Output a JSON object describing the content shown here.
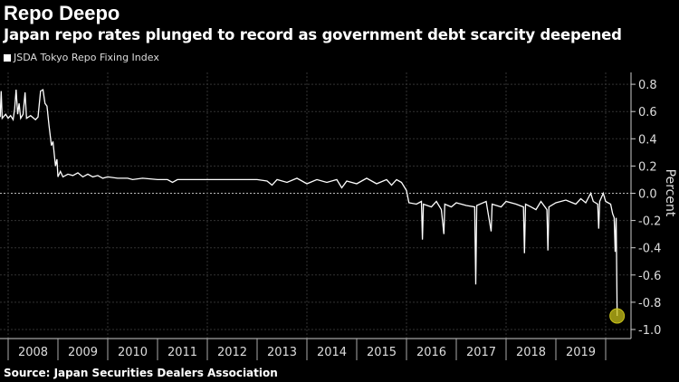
{
  "chart_data": {
    "type": "line",
    "title": "Repo Deepo",
    "subtitle": "Japan repo rates plunged to record as government debt scarcity deepened",
    "source": "Source: Japan Securities Dealers Association",
    "ylabel": "Percent",
    "ylim": [
      -1.0,
      0.8
    ],
    "yticks": [
      "0.8",
      "0.6",
      "0.4",
      "0.2",
      "0.0",
      "-0.2",
      "-0.4",
      "-0.6",
      "-0.8",
      "-1.0"
    ],
    "xticks": [
      "2008",
      "2009",
      "2010",
      "2011",
      "2012",
      "2013",
      "2014",
      "2015",
      "2016",
      "2017",
      "2018",
      "2019"
    ],
    "grid": true,
    "legend_position": "top-left",
    "series": [
      {
        "name": "JSDA Tokyo Repo Fixing Index",
        "color": "#ffffff",
        "points": [
          [
            2007.84,
            0.56
          ],
          [
            2007.86,
            0.75
          ],
          [
            2007.88,
            0.55
          ],
          [
            2007.95,
            0.58
          ],
          [
            2008.0,
            0.55
          ],
          [
            2008.05,
            0.57
          ],
          [
            2008.1,
            0.54
          ],
          [
            2008.13,
            0.62
          ],
          [
            2008.16,
            0.76
          ],
          [
            2008.19,
            0.58
          ],
          [
            2008.22,
            0.66
          ],
          [
            2008.25,
            0.55
          ],
          [
            2008.3,
            0.58
          ],
          [
            2008.34,
            0.74
          ],
          [
            2008.37,
            0.55
          ],
          [
            2008.45,
            0.57
          ],
          [
            2008.55,
            0.54
          ],
          [
            2008.6,
            0.56
          ],
          [
            2008.65,
            0.75
          ],
          [
            2008.7,
            0.76
          ],
          [
            2008.74,
            0.66
          ],
          [
            2008.78,
            0.64
          ],
          [
            2008.82,
            0.5
          ],
          [
            2008.87,
            0.35
          ],
          [
            2008.9,
            0.38
          ],
          [
            2008.95,
            0.2
          ],
          [
            2008.98,
            0.25
          ],
          [
            2009.0,
            0.12
          ],
          [
            2009.05,
            0.16
          ],
          [
            2009.1,
            0.12
          ],
          [
            2009.2,
            0.14
          ],
          [
            2009.3,
            0.13
          ],
          [
            2009.4,
            0.15
          ],
          [
            2009.5,
            0.12
          ],
          [
            2009.6,
            0.14
          ],
          [
            2009.7,
            0.12
          ],
          [
            2009.8,
            0.13
          ],
          [
            2009.9,
            0.11
          ],
          [
            2010.0,
            0.12
          ],
          [
            2010.2,
            0.11
          ],
          [
            2010.4,
            0.11
          ],
          [
            2010.5,
            0.1
          ],
          [
            2010.7,
            0.11
          ],
          [
            2011.0,
            0.1
          ],
          [
            2011.2,
            0.1
          ],
          [
            2011.3,
            0.08
          ],
          [
            2011.4,
            0.1
          ],
          [
            2011.8,
            0.1
          ],
          [
            2012.2,
            0.1
          ],
          [
            2012.6,
            0.1
          ],
          [
            2013.0,
            0.1
          ],
          [
            2013.2,
            0.09
          ],
          [
            2013.3,
            0.06
          ],
          [
            2013.4,
            0.1
          ],
          [
            2013.6,
            0.08
          ],
          [
            2013.8,
            0.11
          ],
          [
            2014.0,
            0.07
          ],
          [
            2014.2,
            0.1
          ],
          [
            2014.4,
            0.08
          ],
          [
            2014.6,
            0.1
          ],
          [
            2014.7,
            0.04
          ],
          [
            2014.8,
            0.09
          ],
          [
            2015.0,
            0.07
          ],
          [
            2015.2,
            0.11
          ],
          [
            2015.4,
            0.07
          ],
          [
            2015.6,
            0.1
          ],
          [
            2015.7,
            0.06
          ],
          [
            2015.8,
            0.1
          ],
          [
            2015.9,
            0.08
          ],
          [
            2016.0,
            0.02
          ],
          [
            2016.05,
            -0.07
          ],
          [
            2016.2,
            -0.08
          ],
          [
            2016.3,
            -0.06
          ],
          [
            2016.32,
            -0.34
          ],
          [
            2016.34,
            -0.08
          ],
          [
            2016.5,
            -0.1
          ],
          [
            2016.6,
            -0.06
          ],
          [
            2016.7,
            -0.12
          ],
          [
            2016.75,
            -0.3
          ],
          [
            2016.77,
            -0.08
          ],
          [
            2016.9,
            -0.1
          ],
          [
            2017.0,
            -0.07
          ],
          [
            2017.2,
            -0.09
          ],
          [
            2017.37,
            -0.1
          ],
          [
            2017.39,
            -0.67
          ],
          [
            2017.41,
            -0.09
          ],
          [
            2017.6,
            -0.06
          ],
          [
            2017.7,
            -0.28
          ],
          [
            2017.72,
            -0.08
          ],
          [
            2017.9,
            -0.1
          ],
          [
            2018.0,
            -0.06
          ],
          [
            2018.2,
            -0.08
          ],
          [
            2018.35,
            -0.1
          ],
          [
            2018.37,
            -0.44
          ],
          [
            2018.39,
            -0.08
          ],
          [
            2018.5,
            -0.1
          ],
          [
            2018.6,
            -0.12
          ],
          [
            2018.7,
            -0.06
          ],
          [
            2018.82,
            -0.12
          ],
          [
            2018.84,
            -0.42
          ],
          [
            2018.86,
            -0.1
          ],
          [
            2019.0,
            -0.07
          ],
          [
            2019.2,
            -0.05
          ],
          [
            2019.4,
            -0.08
          ],
          [
            2019.5,
            -0.04
          ],
          [
            2019.6,
            -0.07
          ],
          [
            2019.7,
            0.0
          ],
          [
            2019.75,
            -0.06
          ],
          [
            2019.84,
            -0.08
          ],
          [
            2019.86,
            -0.26
          ],
          [
            2019.88,
            -0.06
          ],
          [
            2019.95,
            0.0
          ],
          [
            2020.0,
            -0.06
          ],
          [
            2020.1,
            -0.08
          ],
          [
            2020.14,
            -0.15
          ],
          [
            2020.17,
            -0.18
          ],
          [
            2020.19,
            -0.43
          ],
          [
            2020.21,
            -0.18
          ],
          [
            2020.23,
            -0.9
          ]
        ]
      }
    ],
    "highlight": {
      "x": 2020.23,
      "y": -0.9,
      "color": "#c8c21a"
    }
  }
}
